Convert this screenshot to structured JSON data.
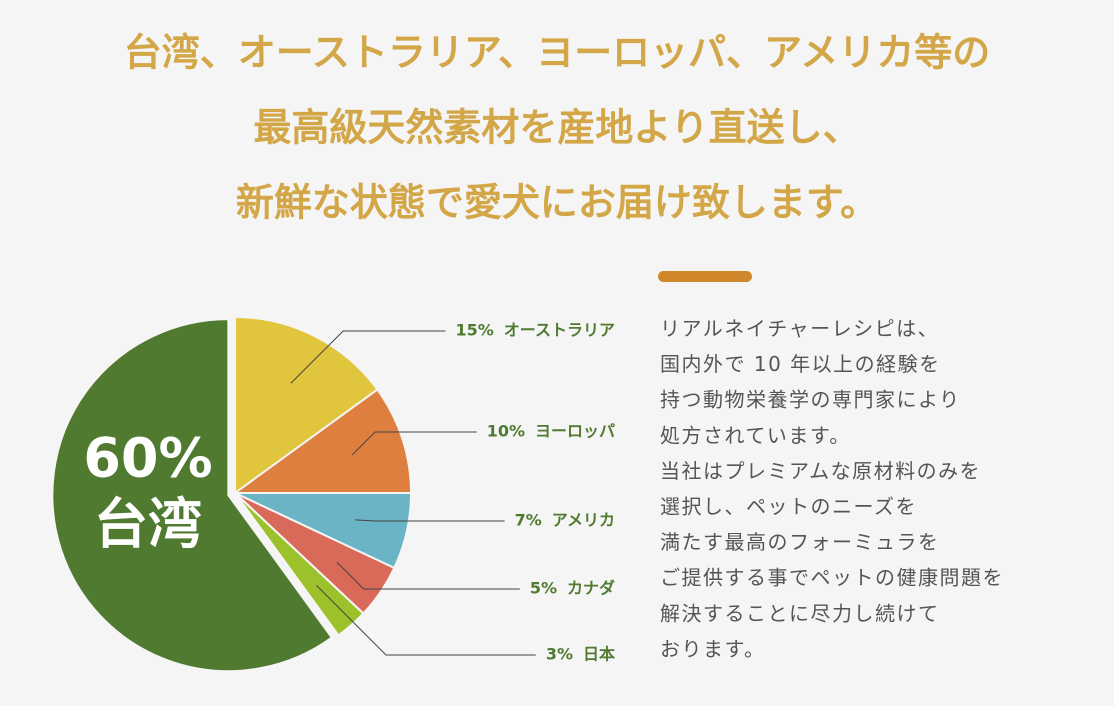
{
  "title_lines": [
    "台湾、オーストラリア、ヨーロッパ、アメリカ等の",
    "最高級天然素材を産地より直送し、",
    "新鮮な状態で愛犬にお届け致します。"
  ],
  "chart_data": {
    "type": "pie",
    "categories": [
      "台湾",
      "オーストラリア",
      "ヨーロッパ",
      "アメリカ",
      "カナダ",
      "日本"
    ],
    "values": [
      60,
      15,
      10,
      7,
      5,
      3
    ],
    "value_labels": [
      "60%",
      "15%",
      "10%",
      "7%",
      "5%",
      "3%"
    ],
    "colors": [
      "#4f7a30",
      "#e0c53d",
      "#de7f40",
      "#6ab4c5",
      "#d96a5a",
      "#9dc12b"
    ]
  },
  "description_lines": [
    "リアルネイチャーレシピは、",
    "国内外で 10 年以上の経験を",
    "持つ動物栄養学の専門家により",
    "処方されています。",
    "当社はプレミアムな原材料のみを",
    "選択し、ペットのニーズを",
    "満たす最高のフォーミュラを",
    "ご提供する事でペットの健康問題を",
    "解決することに尽力し続けて",
    "おります。"
  ]
}
